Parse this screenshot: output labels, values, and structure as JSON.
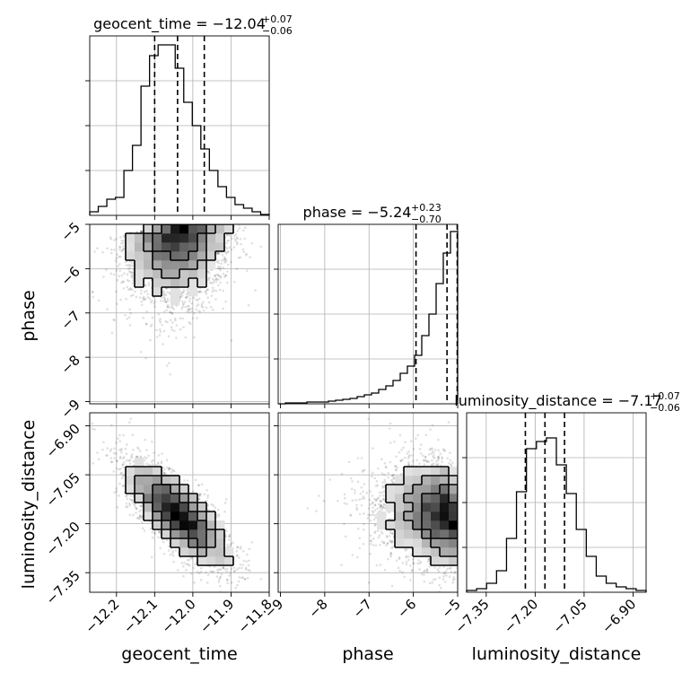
{
  "chart_data": {
    "type": "corner",
    "parameters": [
      "geocent_time",
      "phase",
      "luminosity_distance"
    ],
    "titles": [
      {
        "name": "geocent_time",
        "value": "−12.04",
        "plus": "+0.07",
        "minus": "−0.06"
      },
      {
        "name": "phase",
        "value": "−5.24",
        "plus": "+0.23",
        "minus": "−0.70"
      },
      {
        "name": "luminosity_distance",
        "value": "−7.17",
        "plus": "+0.07",
        "minus": "−0.06"
      }
    ],
    "ranges": {
      "geocent_time": [
        -12.27,
        -11.8
      ],
      "phase": [
        -9.05,
        -5.0
      ],
      "luminosity_distance": [
        -7.41,
        -6.86
      ]
    },
    "ticks": {
      "geocent_time": {
        "values": [
          -12.2,
          -12.1,
          -12.0,
          -11.9,
          -11.8
        ],
        "labels": [
          "−12.2",
          "−12.1",
          "−12.0",
          "−11.9",
          "−11.8"
        ]
      },
      "phase": {
        "values": [
          -9,
          -8,
          -7,
          -6,
          -5
        ],
        "labels": [
          "−9",
          "−8",
          "−7",
          "−6",
          "−5"
        ]
      },
      "luminosity_distance": {
        "values": [
          -7.35,
          -7.2,
          -7.05,
          -6.9
        ],
        "labels": [
          "−7.35",
          "−7.20",
          "−7.05",
          "−6.90"
        ]
      }
    },
    "quantile_lines": {
      "geocent_time": [
        -12.1,
        -12.04,
        -11.97
      ],
      "phase": [
        -5.94,
        -5.24,
        -5.01
      ],
      "luminosity_distance": [
        -7.23,
        -7.17,
        -7.11
      ]
    },
    "histograms": {
      "geocent_time": [
        0.02,
        0.05,
        0.09,
        0.1,
        0.25,
        0.39,
        0.72,
        0.89,
        0.95,
        0.95,
        0.82,
        0.63,
        0.5,
        0.37,
        0.25,
        0.16,
        0.1,
        0.06,
        0.04,
        0.02,
        0.005
      ],
      "phase": [
        0,
        0.005,
        0.005,
        0.005,
        0.01,
        0.01,
        0.01,
        0.015,
        0.02,
        0.025,
        0.03,
        0.04,
        0.05,
        0.06,
        0.08,
        0.1,
        0.13,
        0.17,
        0.21,
        0.27,
        0.38,
        0.5,
        0.67,
        0.84,
        0.96
      ],
      "luminosity_distance": [
        0.01,
        0.02,
        0.05,
        0.12,
        0.3,
        0.56,
        0.8,
        0.84,
        0.86,
        0.71,
        0.55,
        0.35,
        0.2,
        0.09,
        0.05,
        0.03,
        0.02,
        0.01
      ]
    },
    "grid": true
  }
}
